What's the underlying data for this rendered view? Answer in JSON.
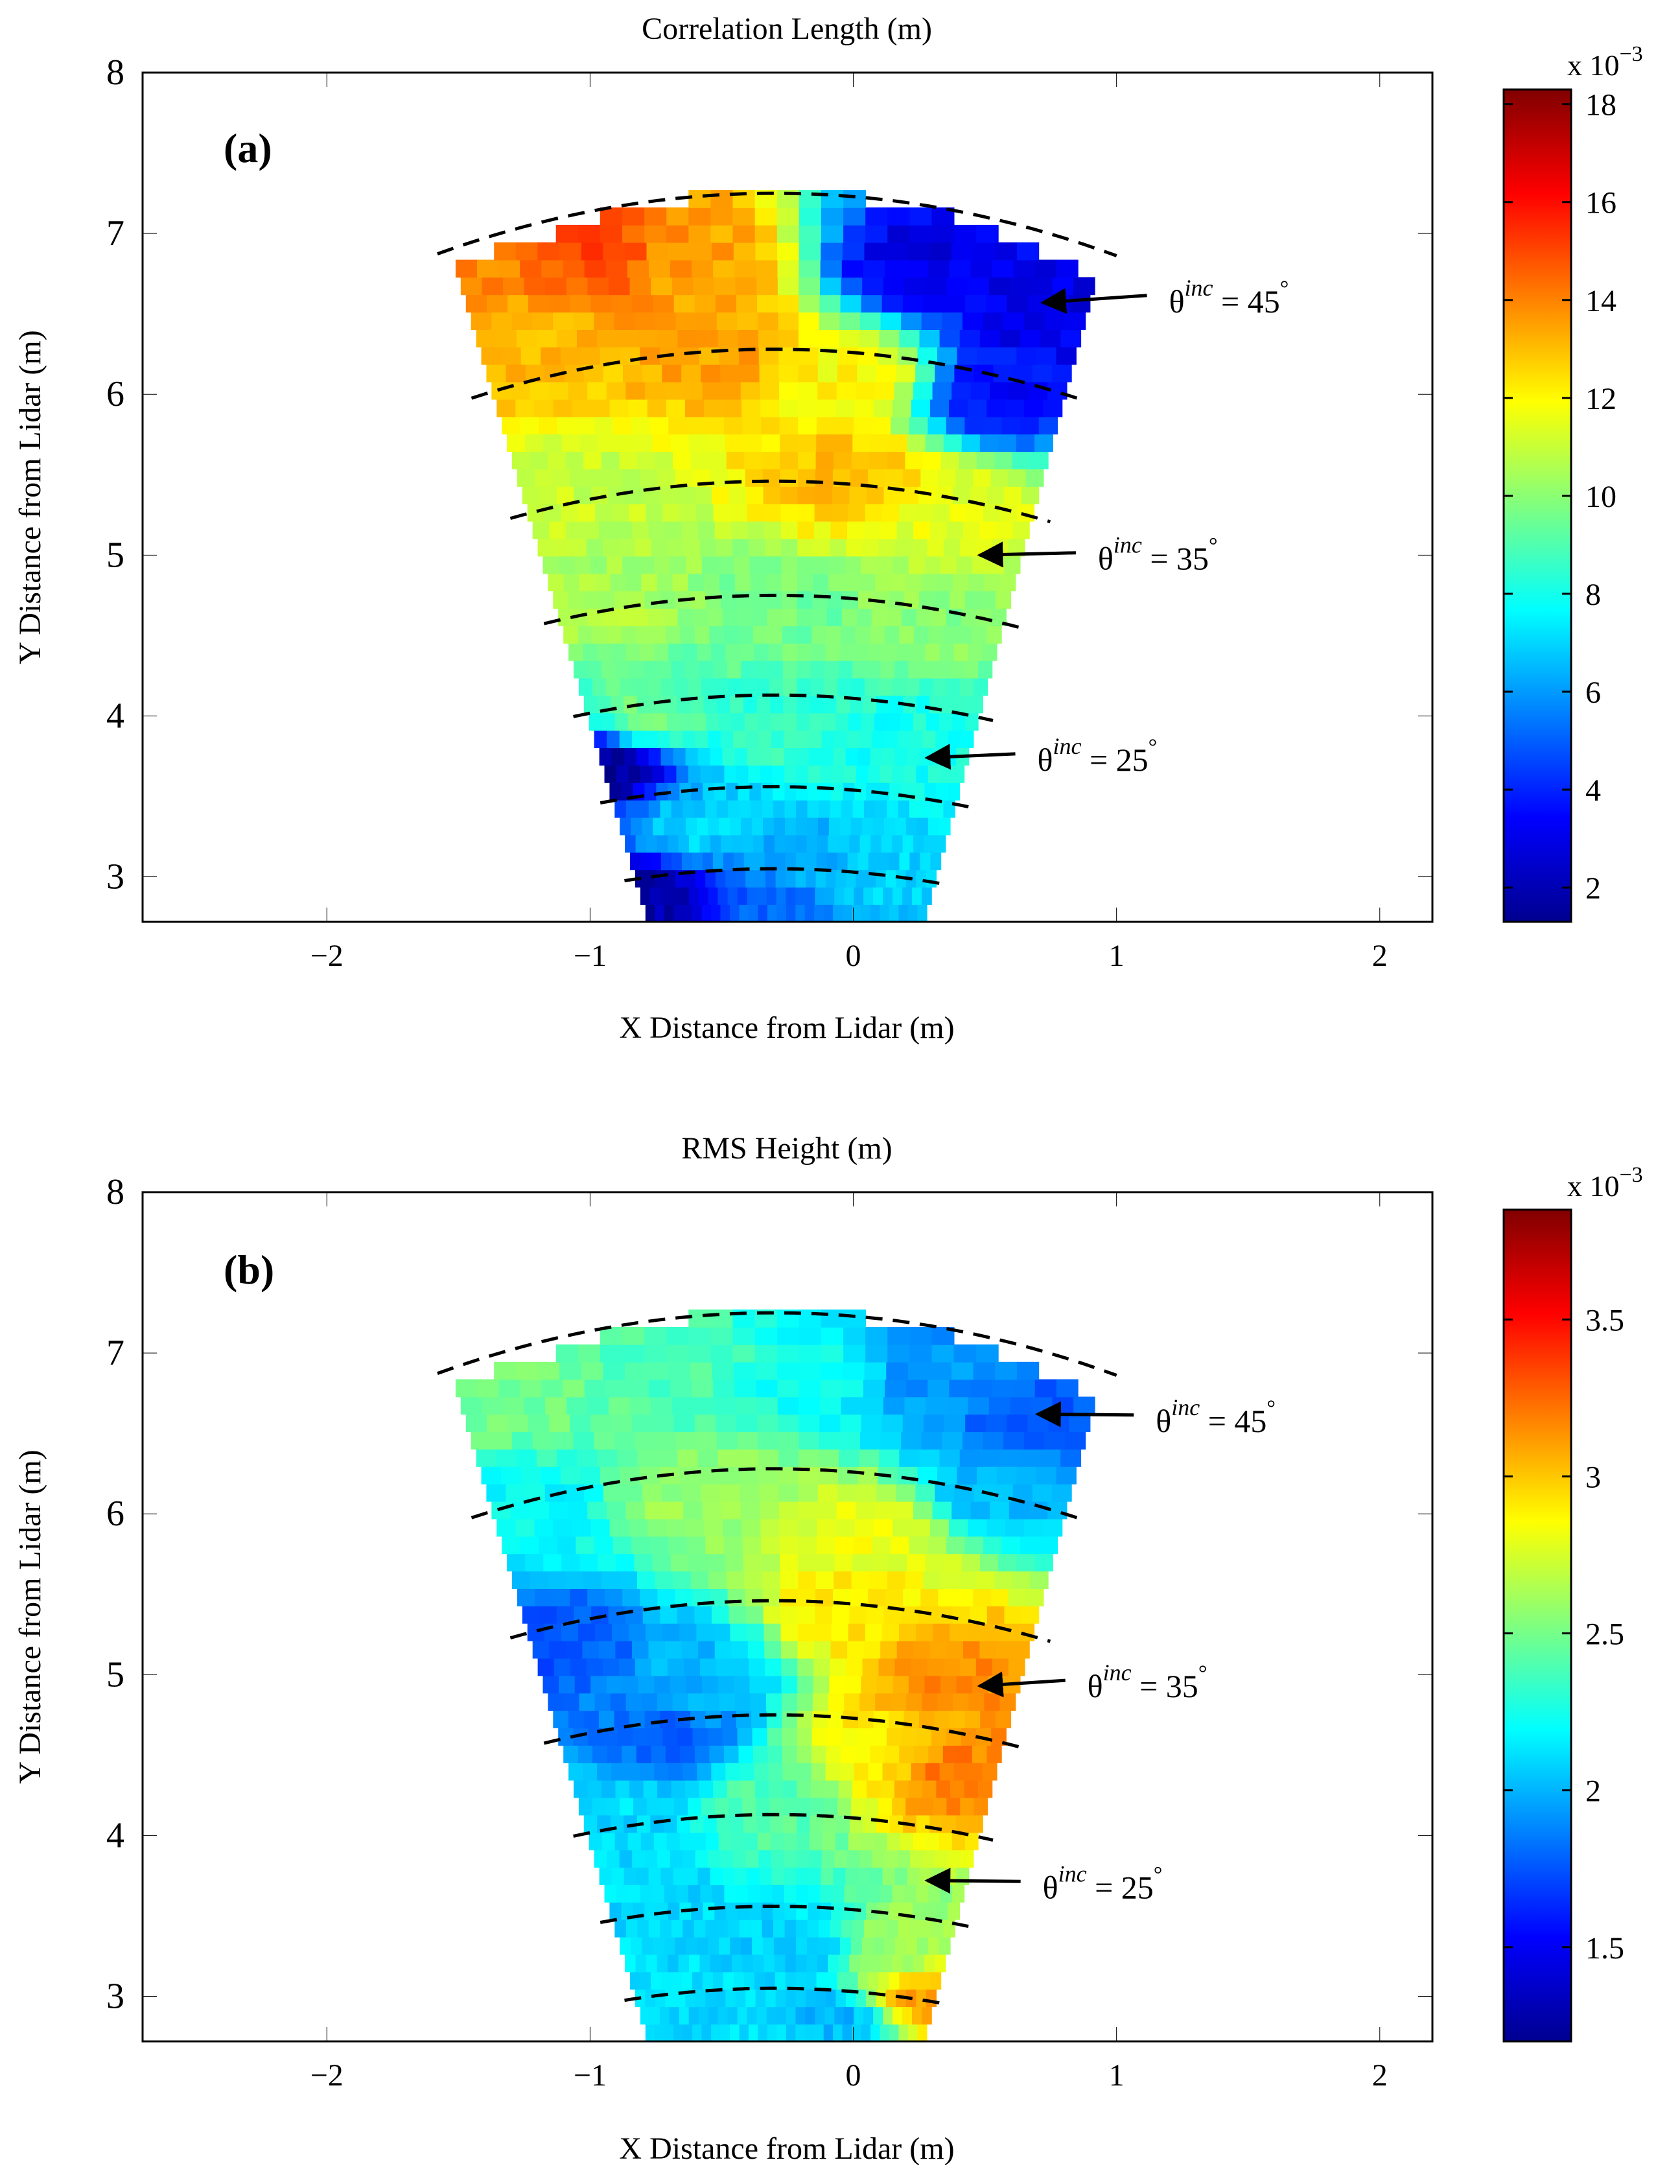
{
  "chart_data": [
    {
      "type": "heatmap",
      "panel_label": "(a)",
      "title": "Correlation Length (m)",
      "xlabel": "X Distance from Lidar (m)",
      "ylabel": "Y Distance from Lidar (m)",
      "xlim": [
        -2.7,
        2.2
      ],
      "ylim": [
        2.72,
        8
      ],
      "xticks": [
        -2,
        -1,
        0,
        1,
        2
      ],
      "xtick_labels": [
        "−2",
        "−1",
        "0",
        "1",
        "2"
      ],
      "yticks": [
        3,
        4,
        5,
        6,
        7,
        8
      ],
      "ytick_labels": [
        "3",
        "4",
        "5",
        "6",
        "7",
        "8"
      ],
      "colorbar": {
        "exponent_label": "x 10",
        "exponent": "−3",
        "range": [
          1.3,
          18.3
        ],
        "ticks": [
          2,
          4,
          6,
          8,
          10,
          12,
          14,
          16,
          18
        ],
        "tick_labels": [
          "2",
          "4",
          "6",
          "8",
          "10",
          "12",
          "14",
          "16",
          "18"
        ]
      },
      "sector": {
        "apex_x": -0.3,
        "apex_y": -3.5,
        "left_edge_x": [
          -0.78,
          -1.55
        ],
        "right_edge_x": [
          0.27,
          0.97
        ],
        "y_range": [
          2.72,
          7.0
        ]
      },
      "incidence_arcs_y_at_center": [
        3.05,
        3.56,
        4.13,
        4.75,
        5.46,
        6.28,
        7.25
      ],
      "annotations": [
        {
          "theta": "θ",
          "sup": "inc",
          "value": "= 45",
          "deg": "°",
          "x": 1.15,
          "y": 6.55,
          "arrow_to_x": 0.72,
          "arrow_to_y": 6.57
        },
        {
          "theta": "θ",
          "sup": "inc",
          "value": "= 35",
          "deg": "°",
          "x": 0.88,
          "y": 4.95,
          "arrow_to_x": 0.48,
          "arrow_to_y": 5.0
        },
        {
          "theta": "θ",
          "sup": "inc",
          "value": "= 25",
          "deg": "°",
          "x": 0.65,
          "y": 3.7,
          "arrow_to_x": 0.28,
          "arrow_to_y": 3.74
        }
      ],
      "field_description_points": [
        {
          "x": -1.4,
          "y": 6.8,
          "v": 14.0
        },
        {
          "x": -1.0,
          "y": 6.9,
          "v": 15.0
        },
        {
          "x": -0.6,
          "y": 6.8,
          "v": 13.5
        },
        {
          "x": -1.2,
          "y": 6.3,
          "v": 13.0
        },
        {
          "x": -0.5,
          "y": 6.3,
          "v": 13.5
        },
        {
          "x": 0.0,
          "y": 6.1,
          "v": 12.0
        },
        {
          "x": 0.25,
          "y": 6.8,
          "v": 3.0
        },
        {
          "x": 0.7,
          "y": 6.5,
          "v": 3.0
        },
        {
          "x": 0.55,
          "y": 6.0,
          "v": 3.5
        },
        {
          "x": -1.1,
          "y": 5.4,
          "v": 11.0
        },
        {
          "x": 0.0,
          "y": 5.5,
          "v": 13.0
        },
        {
          "x": 0.4,
          "y": 5.3,
          "v": 11.5
        },
        {
          "x": -0.9,
          "y": 4.7,
          "v": 10.5
        },
        {
          "x": -0.3,
          "y": 4.6,
          "v": 9.5
        },
        {
          "x": 0.3,
          "y": 4.6,
          "v": 10.0
        },
        {
          "x": -0.8,
          "y": 4.0,
          "v": 9.5
        },
        {
          "x": -0.3,
          "y": 3.9,
          "v": 8.5
        },
        {
          "x": 0.2,
          "y": 3.8,
          "v": 8.0
        },
        {
          "x": -0.6,
          "y": 3.3,
          "v": 7.0
        },
        {
          "x": -0.2,
          "y": 3.1,
          "v": 6.5
        },
        {
          "x": 0.1,
          "y": 3.0,
          "v": 7.0
        },
        {
          "x": -0.95,
          "y": 3.7,
          "v": 1.5
        },
        {
          "x": -0.75,
          "y": 2.9,
          "v": 2.0
        },
        {
          "x": -0.3,
          "y": 2.85,
          "v": 5.0
        }
      ]
    },
    {
      "type": "heatmap",
      "panel_label": "(b)",
      "title": "RMS Height (m)",
      "xlabel": "X Distance from Lidar (m)",
      "ylabel": "Y Distance from Lidar (m)",
      "xlim": [
        -2.7,
        2.2
      ],
      "ylim": [
        2.72,
        8
      ],
      "xticks": [
        -2,
        -1,
        0,
        1,
        2
      ],
      "xtick_labels": [
        "−2",
        "−1",
        "0",
        "1",
        "2"
      ],
      "yticks": [
        3,
        4,
        5,
        6,
        7,
        8
      ],
      "ytick_labels": [
        "3",
        "4",
        "5",
        "6",
        "7",
        "8"
      ],
      "colorbar": {
        "exponent_label": "x 10",
        "exponent": "−3",
        "range": [
          1.2,
          3.85
        ],
        "ticks": [
          1.5,
          2,
          2.5,
          3,
          3.5
        ],
        "tick_labels": [
          "1.5",
          "2",
          "2.5",
          "3",
          "3.5"
        ]
      },
      "sector": {
        "apex_x": -0.3,
        "apex_y": -3.5,
        "left_edge_x": [
          -0.78,
          -1.55
        ],
        "right_edge_x": [
          0.27,
          0.97
        ],
        "y_range": [
          2.72,
          7.0
        ]
      },
      "incidence_arcs_y_at_center": [
        3.05,
        3.56,
        4.13,
        4.75,
        5.46,
        6.28,
        7.25
      ],
      "annotations": [
        {
          "theta": "θ",
          "sup": "inc",
          "value": "= 45",
          "deg": "°",
          "x": 1.1,
          "y": 6.55,
          "arrow_to_x": 0.7,
          "arrow_to_y": 6.62
        },
        {
          "theta": "θ",
          "sup": "inc",
          "value": "= 35",
          "deg": "°",
          "x": 0.84,
          "y": 4.9,
          "arrow_to_x": 0.48,
          "arrow_to_y": 4.93
        },
        {
          "theta": "θ",
          "sup": "inc",
          "value": "= 25",
          "deg": "°",
          "x": 0.67,
          "y": 3.65,
          "arrow_to_x": 0.28,
          "arrow_to_y": 3.72
        }
      ],
      "field_description_points": [
        {
          "x": -1.3,
          "y": 6.8,
          "v": 2.5
        },
        {
          "x": -0.7,
          "y": 6.9,
          "v": 2.4
        },
        {
          "x": -0.1,
          "y": 6.9,
          "v": 2.2
        },
        {
          "x": 0.3,
          "y": 6.9,
          "v": 1.9
        },
        {
          "x": 0.7,
          "y": 6.6,
          "v": 1.75
        },
        {
          "x": 0.55,
          "y": 6.2,
          "v": 2.0
        },
        {
          "x": -1.2,
          "y": 6.0,
          "v": 2.2
        },
        {
          "x": -0.6,
          "y": 6.1,
          "v": 2.6
        },
        {
          "x": 0.05,
          "y": 5.9,
          "v": 2.8
        },
        {
          "x": -1.1,
          "y": 5.2,
          "v": 1.75
        },
        {
          "x": -0.6,
          "y": 5.0,
          "v": 2.0
        },
        {
          "x": 0.0,
          "y": 5.4,
          "v": 2.9
        },
        {
          "x": 0.35,
          "y": 5.0,
          "v": 3.15
        },
        {
          "x": 0.35,
          "y": 4.4,
          "v": 3.2
        },
        {
          "x": 0.1,
          "y": 4.5,
          "v": 2.9
        },
        {
          "x": -0.7,
          "y": 4.6,
          "v": 1.8
        },
        {
          "x": -0.9,
          "y": 4.1,
          "v": 2.1
        },
        {
          "x": -0.3,
          "y": 4.2,
          "v": 2.4
        },
        {
          "x": -0.7,
          "y": 3.5,
          "v": 2.1
        },
        {
          "x": -0.2,
          "y": 3.3,
          "v": 2.05
        },
        {
          "x": 0.15,
          "y": 3.3,
          "v": 2.6
        },
        {
          "x": 0.25,
          "y": 3.0,
          "v": 3.1
        },
        {
          "x": -0.5,
          "y": 2.9,
          "v": 2.1
        },
        {
          "x": -0.05,
          "y": 2.85,
          "v": 2.0
        }
      ]
    }
  ]
}
